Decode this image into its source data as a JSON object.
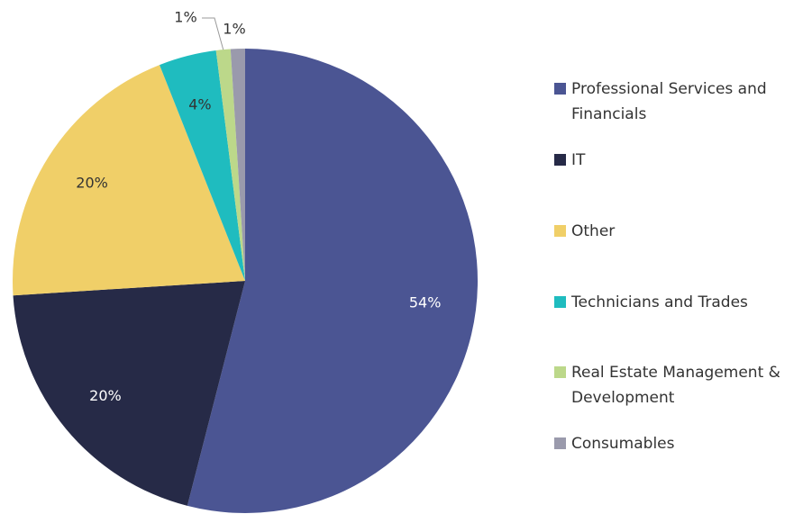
{
  "chart_data": {
    "type": "pie",
    "categories": [
      "Professional Services and Financials",
      "IT",
      "Other",
      "Technicians and Trades",
      "Real Estate Management & Development",
      "Consumables"
    ],
    "values": [
      54,
      20,
      20,
      4,
      1,
      1
    ],
    "value_labels": [
      "54%",
      "20%",
      "20%",
      "4%",
      "1%",
      "1%"
    ],
    "colors": [
      "#4b5593",
      "#262a47",
      "#f0cf68",
      "#1fbcbf",
      "#bcd88a",
      "#9a9aac"
    ]
  }
}
